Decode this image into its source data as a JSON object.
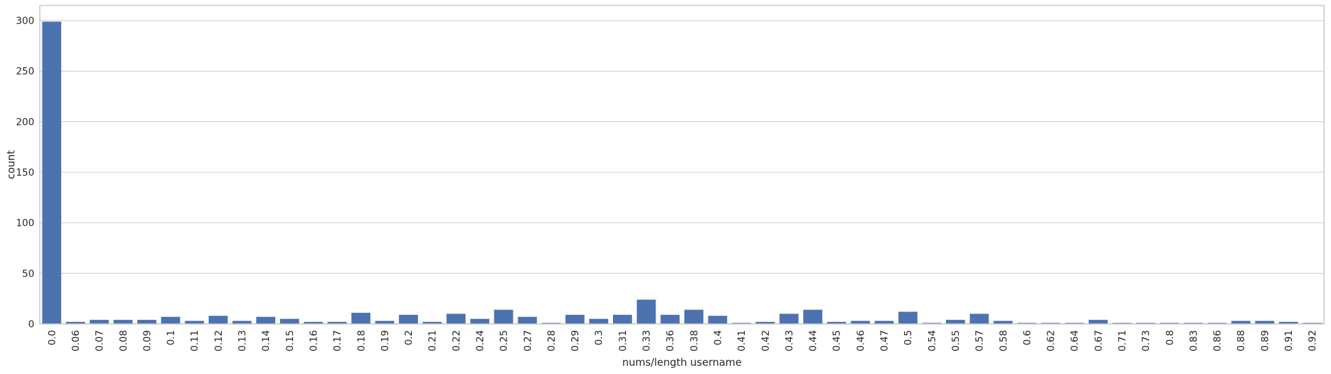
{
  "chart_data": {
    "type": "bar",
    "xlabel": "nums/length username",
    "ylabel": "count",
    "ylim": [
      0,
      315
    ],
    "yticks": [
      0,
      50,
      100,
      150,
      200,
      250,
      300
    ],
    "grid": "horizontal",
    "bar_color": "#4c72b0",
    "categories": [
      "0.0",
      "0.06",
      "0.07",
      "0.08",
      "0.09",
      "0.1",
      "0.11",
      "0.12",
      "0.13",
      "0.14",
      "0.15",
      "0.16",
      "0.17",
      "0.18",
      "0.19",
      "0.2",
      "0.21",
      "0.22",
      "0.24",
      "0.25",
      "0.27",
      "0.28",
      "0.29",
      "0.3",
      "0.31",
      "0.33",
      "0.36",
      "0.38",
      "0.4",
      "0.41",
      "0.42",
      "0.43",
      "0.44",
      "0.45",
      "0.46",
      "0.47",
      "0.5",
      "0.54",
      "0.55",
      "0.57",
      "0.58",
      "0.6",
      "0.62",
      "0.64",
      "0.67",
      "0.71",
      "0.73",
      "0.8",
      "0.83",
      "0.86",
      "0.88",
      "0.89",
      "0.91",
      "0.92"
    ],
    "values": [
      299,
      2,
      4,
      4,
      4,
      7,
      3,
      8,
      3,
      7,
      5,
      2,
      2,
      11,
      3,
      9,
      2,
      10,
      5,
      14,
      7,
      1,
      9,
      5,
      9,
      24,
      9,
      14,
      8,
      1,
      2,
      10,
      14,
      2,
      3,
      3,
      12,
      1,
      4,
      10,
      3,
      1,
      1,
      1,
      4,
      1,
      1,
      1,
      1,
      1,
      3,
      3,
      2,
      1
    ]
  }
}
